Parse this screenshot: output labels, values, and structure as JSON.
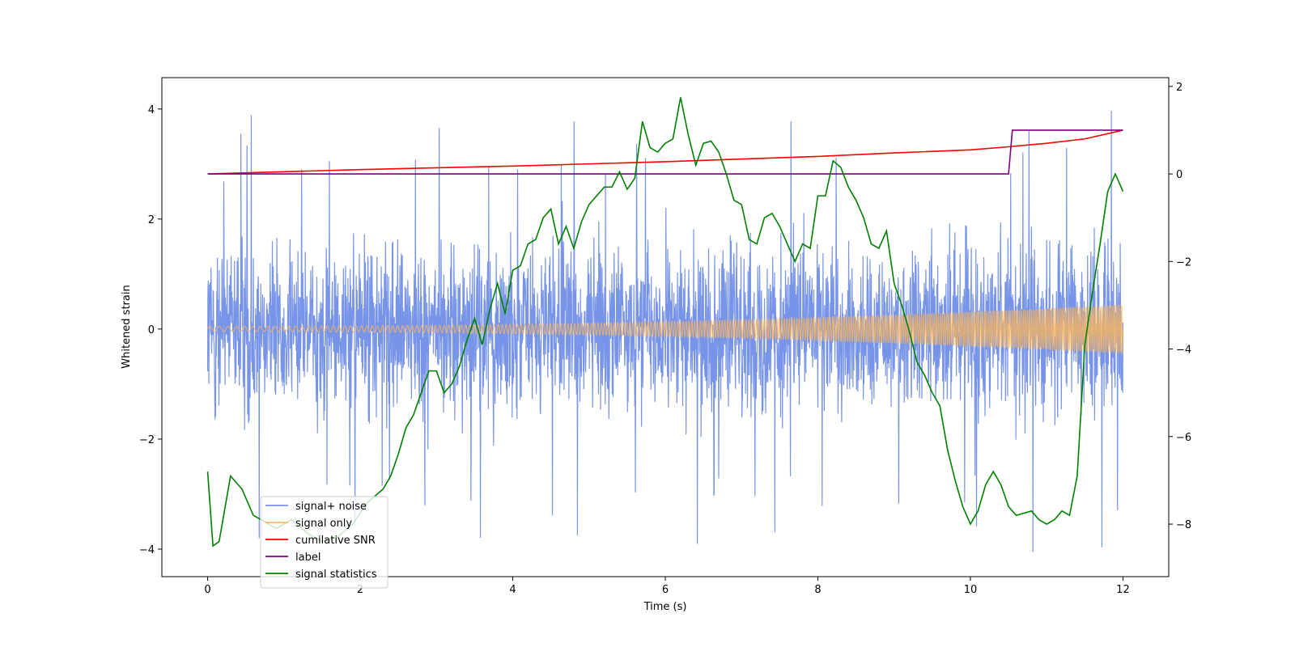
{
  "chart_data": {
    "type": "line",
    "title": "",
    "xlabel": "Time (s)",
    "ylabel": "Whitened strain",
    "y2label": "",
    "xlim": [
      -0.6,
      12.6
    ],
    "ylim": [
      -4.5,
      4.57
    ],
    "y2lim": [
      -9.2,
      2.2
    ],
    "xticks": [
      0,
      2,
      4,
      6,
      8,
      10,
      12
    ],
    "xtick_labels": [
      "0",
      "2",
      "4",
      "6",
      "8",
      "10",
      "12"
    ],
    "yticks": [
      -4,
      -2,
      0,
      2,
      4
    ],
    "ytick_labels": [
      "−4",
      "−2",
      "0",
      "2",
      "4"
    ],
    "y2ticks": [
      -8,
      -6,
      -4,
      -2,
      0,
      2
    ],
    "y2tick_labels": [
      "−8",
      "−6",
      "−4",
      "−2",
      "0",
      "2"
    ],
    "grid": false,
    "legend_position": "lower-left",
    "series": [
      {
        "name": "signal+ noise",
        "axis": "left",
        "color": "#6b8be6",
        "description": "dense noisy band, roughly -2.5..2.5 with spikes to about ±4",
        "t_range": [
          0,
          12
        ],
        "envelope": 2.4,
        "spike_max": 4.2
      },
      {
        "name": "signal only",
        "axis": "left",
        "color": "#f5b461",
        "description": "oscillating chirp with amplitude growing from ~0.05 to ~0.45",
        "t_range": [
          0,
          12
        ],
        "amp_start": 0.05,
        "amp_end": 0.45
      },
      {
        "name": "cumilative SNR",
        "axis": "right",
        "color": "#ff0000",
        "x": [
          0,
          2,
          4,
          6,
          8,
          9,
          10,
          10.5,
          11,
          11.5,
          12
        ],
        "values": [
          0.0,
          0.1,
          0.18,
          0.28,
          0.4,
          0.48,
          0.55,
          0.62,
          0.7,
          0.8,
          1.0
        ]
      },
      {
        "name": "label",
        "axis": "right",
        "color": "#800080",
        "x": [
          0,
          10.5,
          10.55,
          12
        ],
        "values": [
          0,
          0,
          1,
          1
        ]
      },
      {
        "name": "signal statistics",
        "axis": "right",
        "color": "#008000",
        "x": [
          0,
          0.07,
          0.15,
          0.25,
          0.3,
          0.45,
          0.6,
          0.9,
          1.1,
          1.3,
          1.5,
          1.7,
          1.9,
          2.1,
          2.3,
          2.4,
          2.5,
          2.6,
          2.7,
          2.8,
          2.9,
          3.0,
          3.1,
          3.2,
          3.3,
          3.4,
          3.5,
          3.6,
          3.7,
          3.8,
          3.9,
          4.0,
          4.1,
          4.2,
          4.3,
          4.4,
          4.5,
          4.6,
          4.7,
          4.8,
          4.9,
          5.0,
          5.1,
          5.2,
          5.3,
          5.4,
          5.5,
          5.6,
          5.7,
          5.8,
          5.9,
          6.0,
          6.1,
          6.2,
          6.3,
          6.4,
          6.5,
          6.6,
          6.7,
          6.8,
          6.9,
          7.0,
          7.1,
          7.2,
          7.3,
          7.4,
          7.5,
          7.6,
          7.7,
          7.8,
          7.9,
          8.0,
          8.1,
          8.2,
          8.3,
          8.4,
          8.5,
          8.6,
          8.7,
          8.8,
          8.9,
          9.0,
          9.1,
          9.2,
          9.3,
          9.4,
          9.5,
          9.6,
          9.7,
          9.8,
          9.9,
          10.0,
          10.1,
          10.2,
          10.3,
          10.4,
          10.5,
          10.6,
          10.7,
          10.8,
          10.9,
          11.0,
          11.1,
          11.2,
          11.3,
          11.4,
          11.5,
          11.6,
          11.7,
          11.8,
          11.9,
          12.0
        ],
        "values": [
          -6.8,
          -8.5,
          -8.4,
          -7.4,
          -6.9,
          -7.2,
          -7.8,
          -8.1,
          -7.9,
          -8.2,
          -8.4,
          -8.3,
          -8.0,
          -7.5,
          -7.2,
          -6.9,
          -6.4,
          -5.8,
          -5.5,
          -5.0,
          -4.5,
          -4.5,
          -5.0,
          -4.8,
          -4.4,
          -3.8,
          -3.3,
          -3.9,
          -3.1,
          -2.5,
          -3.2,
          -2.2,
          -2.1,
          -1.6,
          -1.5,
          -1.0,
          -0.8,
          -1.6,
          -1.2,
          -1.7,
          -1.1,
          -0.7,
          -0.5,
          -0.3,
          -0.3,
          0.05,
          -0.35,
          -0.1,
          1.2,
          0.6,
          0.5,
          0.7,
          0.8,
          1.75,
          0.9,
          0.2,
          0.7,
          0.75,
          0.5,
          0.0,
          -0.6,
          -0.7,
          -1.5,
          -1.6,
          -1.0,
          -0.9,
          -1.2,
          -1.6,
          -2.0,
          -1.6,
          -1.7,
          -0.5,
          -0.5,
          0.3,
          0.15,
          -0.3,
          -0.6,
          -1.0,
          -1.6,
          -1.7,
          -1.3,
          -2.5,
          -3.0,
          -3.6,
          -4.3,
          -4.6,
          -5.0,
          -5.3,
          -6.3,
          -7.0,
          -7.6,
          -8.0,
          -7.7,
          -7.1,
          -6.8,
          -7.1,
          -7.6,
          -7.8,
          -7.75,
          -7.7,
          -7.9,
          -8.0,
          -7.9,
          -7.7,
          -7.8,
          -6.9,
          -3.9,
          -2.7,
          -1.6,
          -0.4,
          0.0,
          -0.4
        ]
      }
    ]
  }
}
